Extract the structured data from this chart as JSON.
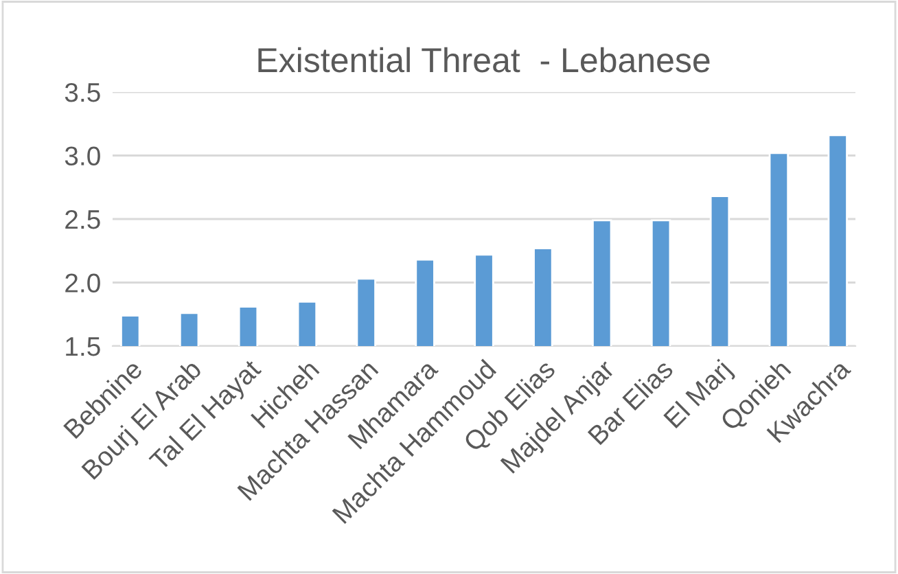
{
  "chart_data": {
    "type": "bar",
    "title": "Existential Threat  - Lebanese",
    "categories": [
      "Bebnine",
      "Bourj El Arab",
      "Tal El Hayat",
      "Hicheh",
      "Machta Hassan",
      "Mhamara",
      "Machta Hammoud",
      "Qob Elias",
      "Majdel Anjar",
      "Bar Elias",
      "El Marj",
      "Qonieh",
      "Kwachra"
    ],
    "values": [
      1.74,
      1.76,
      1.81,
      1.85,
      2.03,
      2.18,
      2.22,
      2.27,
      2.49,
      2.49,
      2.68,
      3.02,
      3.16
    ],
    "color": "#5b9bd5",
    "ylim": [
      1.5,
      3.5
    ],
    "yticks": [
      {
        "value": 1.5,
        "label": "1.5"
      },
      {
        "value": 2.0,
        "label": "2.0"
      },
      {
        "value": 2.5,
        "label": "2.5"
      },
      {
        "value": 3.0,
        "label": "3.0"
      },
      {
        "value": 3.5,
        "label": "3.5"
      }
    ],
    "grid": "y"
  }
}
